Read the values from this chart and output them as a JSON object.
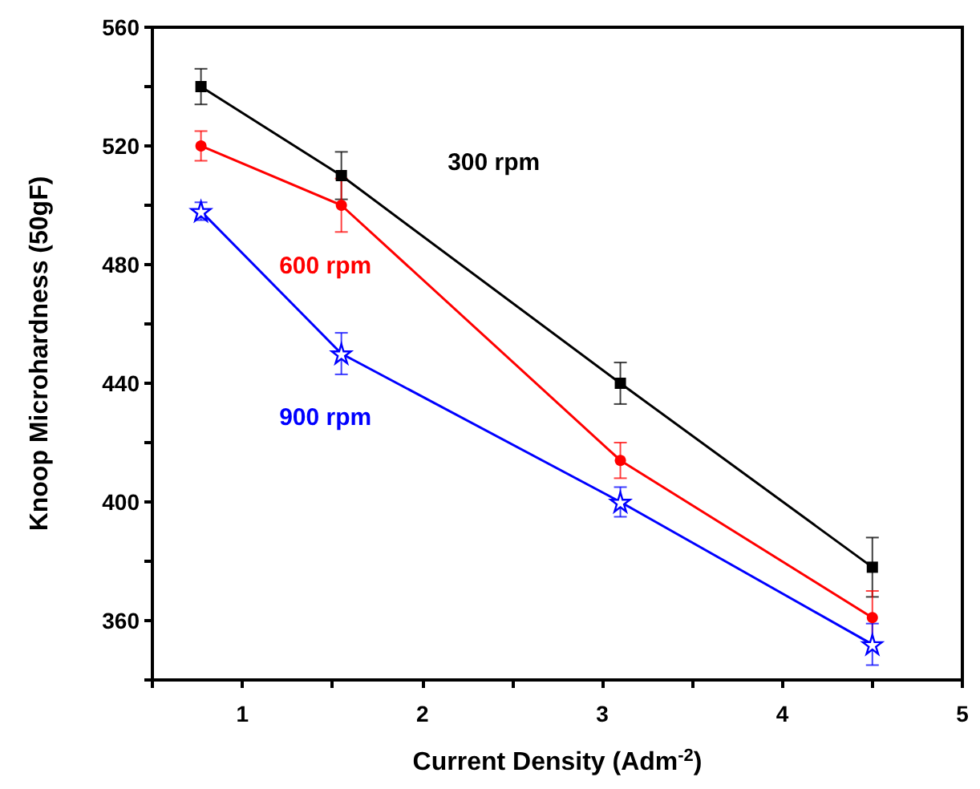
{
  "chart_data": {
    "type": "line",
    "xlabel": "Current Density (Adm$^{-2}$)",
    "ylabel": "Knoop Microhardness (50gF)",
    "x": [
      0.77,
      1.55,
      3.1,
      4.5
    ],
    "series": [
      {
        "name": "300 rpm",
        "color": "#000000",
        "marker": "square",
        "values": [
          540,
          510,
          440,
          378
        ],
        "errors": [
          6,
          8,
          7,
          10
        ]
      },
      {
        "name": "600 rpm",
        "color": "#ff0000",
        "marker": "circle",
        "values": [
          520,
          500,
          414,
          361
        ],
        "errors": [
          5,
          9,
          6,
          9
        ]
      },
      {
        "name": "900 rpm",
        "color": "#0000ff",
        "marker": "star",
        "values": [
          498,
          450,
          400,
          352
        ],
        "errors": [
          3,
          7,
          5,
          7
        ]
      }
    ],
    "xlim": [
      0.5,
      5
    ],
    "xticks": [
      {
        "value": 0.5,
        "label": null
      },
      1,
      {
        "value": 1.5,
        "label": null
      },
      2,
      {
        "value": 2.5,
        "label": null
      },
      3,
      {
        "value": 3.5,
        "label": null
      },
      4,
      {
        "value": 4.5,
        "label": null
      },
      5
    ],
    "ylim": [
      340,
      560
    ],
    "yticks": [
      {
        "value": 340,
        "label": null
      },
      360,
      {
        "value": 380,
        "label": null
      },
      400,
      {
        "value": 420,
        "label": null
      },
      440,
      {
        "value": 460,
        "label": null
      },
      480,
      {
        "value": 500,
        "label": null
      },
      520,
      {
        "value": 540,
        "label": null
      },
      560
    ],
    "grid": false,
    "legend": false,
    "line_style": "solid"
  }
}
